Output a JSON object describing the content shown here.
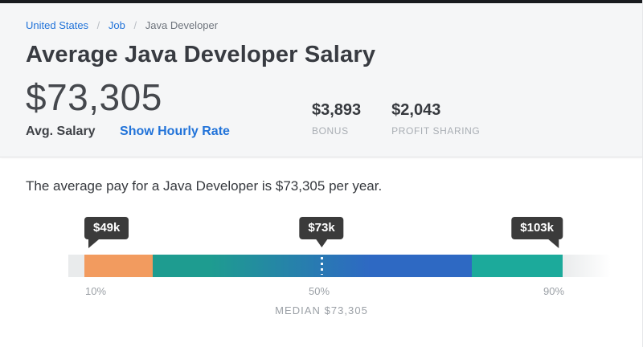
{
  "colors": {
    "link_blue": "#2173d9",
    "header_bg": "#f5f6f7",
    "tooltip_bg": "#3b3b3b",
    "segment_orange": "#f29b5f",
    "segment_teal_left": "#1e9c90",
    "segment_blue": "#2e69c3",
    "segment_teal_right": "#1caa9b",
    "bar_base_gray": "#e9ebec"
  },
  "breadcrumb": {
    "separator": "/",
    "items": [
      {
        "label": "United States"
      },
      {
        "label": "Job"
      },
      {
        "label": "Java Developer"
      }
    ]
  },
  "header": {
    "title": "Average Java Developer Salary",
    "salary": {
      "value": "$73,305",
      "label": "Avg. Salary",
      "hourly_link": "Show Hourly Rate"
    },
    "stats": [
      {
        "value": "$3,893",
        "label": "BONUS"
      },
      {
        "value": "$2,043",
        "label": "PROFIT SHARING"
      }
    ]
  },
  "summary": "The average pay for a Java Developer is $73,305 per year.",
  "chart_data": {
    "type": "bar",
    "subtype": "salary-percentile-range",
    "markers": [
      {
        "percentile": "10%",
        "tooltip": "$49k",
        "value": 49000
      },
      {
        "percentile": "50%",
        "tooltip": "$73k",
        "value": 73305
      },
      {
        "percentile": "90%",
        "tooltip": "$103k",
        "value": 103000
      }
    ],
    "median_caption": "MEDIAN $73,305",
    "segments": [
      {
        "range": "10th-25th percentile",
        "color": "#f29b5f"
      },
      {
        "range": "25th-75th percentile",
        "color_start": "#1e9c90",
        "color_end": "#2e69c3"
      },
      {
        "range": "75th-90th percentile",
        "color": "#1caa9b"
      }
    ],
    "legend_position": "none",
    "grid": false
  }
}
